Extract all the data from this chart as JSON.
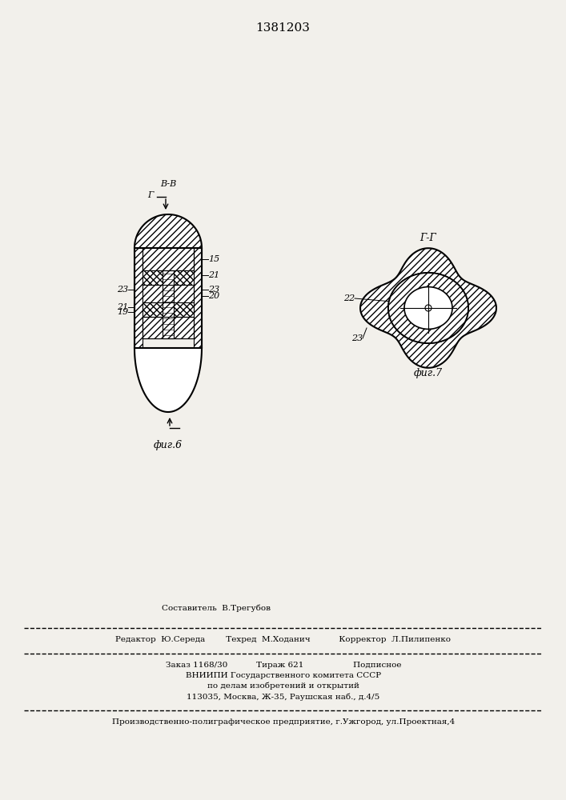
{
  "title_text": "1381203",
  "bg_color": "#f2f0eb",
  "line_color": "#000000",
  "fig6_label": "фиг.6",
  "fig7_label": "фиг.7",
  "footer_line1": "Составитель  В.Трегубов",
  "footer_line2": "Редактор  Ю.Середа        Техред  М.Ходанич           Корректор  Л.Пилипенко",
  "footer_line3": "Заказ 1168/30           Тираж 621                   Подписное",
  "footer_line4": "ВНИИПИ Государственного комитета СССР",
  "footer_line5": "по делам изобретений и открытий",
  "footer_line6": "113035, Москва, Ж-35, Раушская наб., д.4/5",
  "footer_line7": "Производственно-полиграфическое предприятие, г.Ужгород, ул.Проектная,4"
}
